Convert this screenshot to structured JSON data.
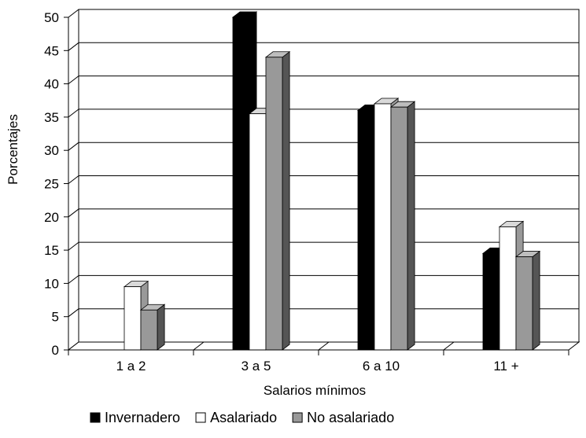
{
  "chart_data": {
    "type": "bar",
    "xlabel": "Salarios mínimos",
    "ylabel": "Porcentajes",
    "categories": [
      "1 a 2",
      "3 a 5",
      "6 a 10",
      "11 +"
    ],
    "ylim": [
      0,
      50
    ],
    "yticks": [
      "0",
      "5",
      "10",
      "15",
      "20",
      "25",
      "30",
      "35",
      "40",
      "45",
      "50"
    ],
    "grid": true,
    "legend_position": "bottom",
    "series": [
      {
        "name": "Invernadero",
        "color": "#000000",
        "values": [
          0,
          50,
          36,
          14.5
        ]
      },
      {
        "name": "Asalariado",
        "color": "#ffffff",
        "values": [
          9.5,
          35.5,
          37,
          18.5
        ]
      },
      {
        "name": "No asalariado",
        "color": "#999999",
        "values": [
          6,
          44,
          36.5,
          14
        ]
      }
    ]
  }
}
